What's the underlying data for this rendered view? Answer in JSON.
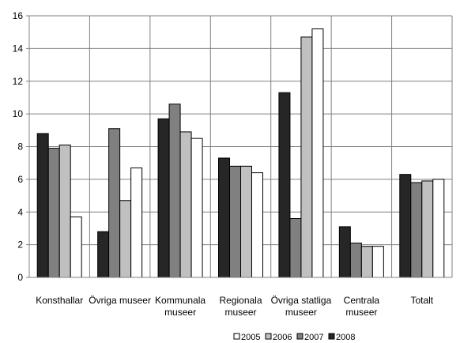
{
  "chart_data": {
    "type": "bar",
    "title": "",
    "xlabel": "",
    "ylabel": "",
    "ylim": [
      0,
      16
    ],
    "yticks": [
      "0",
      "2",
      "4",
      "6",
      "8",
      "10",
      "12",
      "14",
      "16"
    ],
    "grid": true,
    "legend_position": "bottom-right",
    "categories": [
      [
        "Konsthallar"
      ],
      [
        "Övriga museer"
      ],
      [
        "Kommunala",
        "museer"
      ],
      [
        "Regionala",
        "museer"
      ],
      [
        "Övriga statliga",
        "museer"
      ],
      [
        "Centrala",
        "museer"
      ],
      [
        "Totalt"
      ]
    ],
    "series": [
      {
        "name": "2008",
        "color": "#262626",
        "values": [
          8.8,
          2.8,
          9.7,
          7.3,
          11.3,
          3.1,
          6.3
        ]
      },
      {
        "name": "2007",
        "color": "#808080",
        "values": [
          7.9,
          9.1,
          10.6,
          6.8,
          3.6,
          2.1,
          5.8
        ]
      },
      {
        "name": "2006",
        "color": "#c0c0c0",
        "values": [
          8.1,
          4.7,
          8.9,
          6.8,
          14.7,
          1.9,
          5.9
        ]
      },
      {
        "name": "2005",
        "color": "#ffffff",
        "values": [
          3.7,
          6.7,
          8.5,
          6.4,
          15.2,
          1.9,
          6.0
        ]
      }
    ],
    "legend_order": [
      "2005",
      "2006",
      "2007",
      "2008"
    ]
  }
}
